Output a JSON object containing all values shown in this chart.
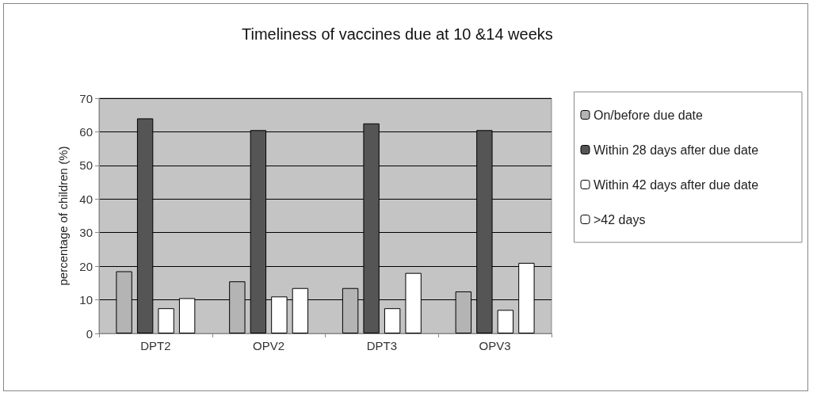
{
  "chart_data": {
    "type": "bar",
    "title": "Timeliness of vaccines due at 10 &14 weeks",
    "ylabel": "percentage of children (%)",
    "categories": [
      "DPT2",
      "OPV2",
      "DPT3",
      "OPV3"
    ],
    "series": [
      {
        "name": "On/before due date",
        "color": "#b4b4b4",
        "values": [
          18.5,
          15.5,
          13.5,
          12.5
        ]
      },
      {
        "name": "Within 28 days after due date",
        "color": "#555555",
        "values": [
          64,
          60.5,
          62.5,
          60.5
        ]
      },
      {
        "name": "Within 42 days after due date",
        "color": "#ffffff",
        "values": [
          7.5,
          11,
          7.5,
          7
        ]
      },
      {
        "name": ">42 days",
        "color": "#ffffff",
        "values": [
          10.5,
          13.5,
          18,
          21
        ]
      }
    ],
    "ylim": [
      0,
      70
    ],
    "yticks": [
      0,
      10,
      20,
      30,
      40,
      50,
      60,
      70
    ],
    "grid": "y",
    "legend": "right"
  }
}
